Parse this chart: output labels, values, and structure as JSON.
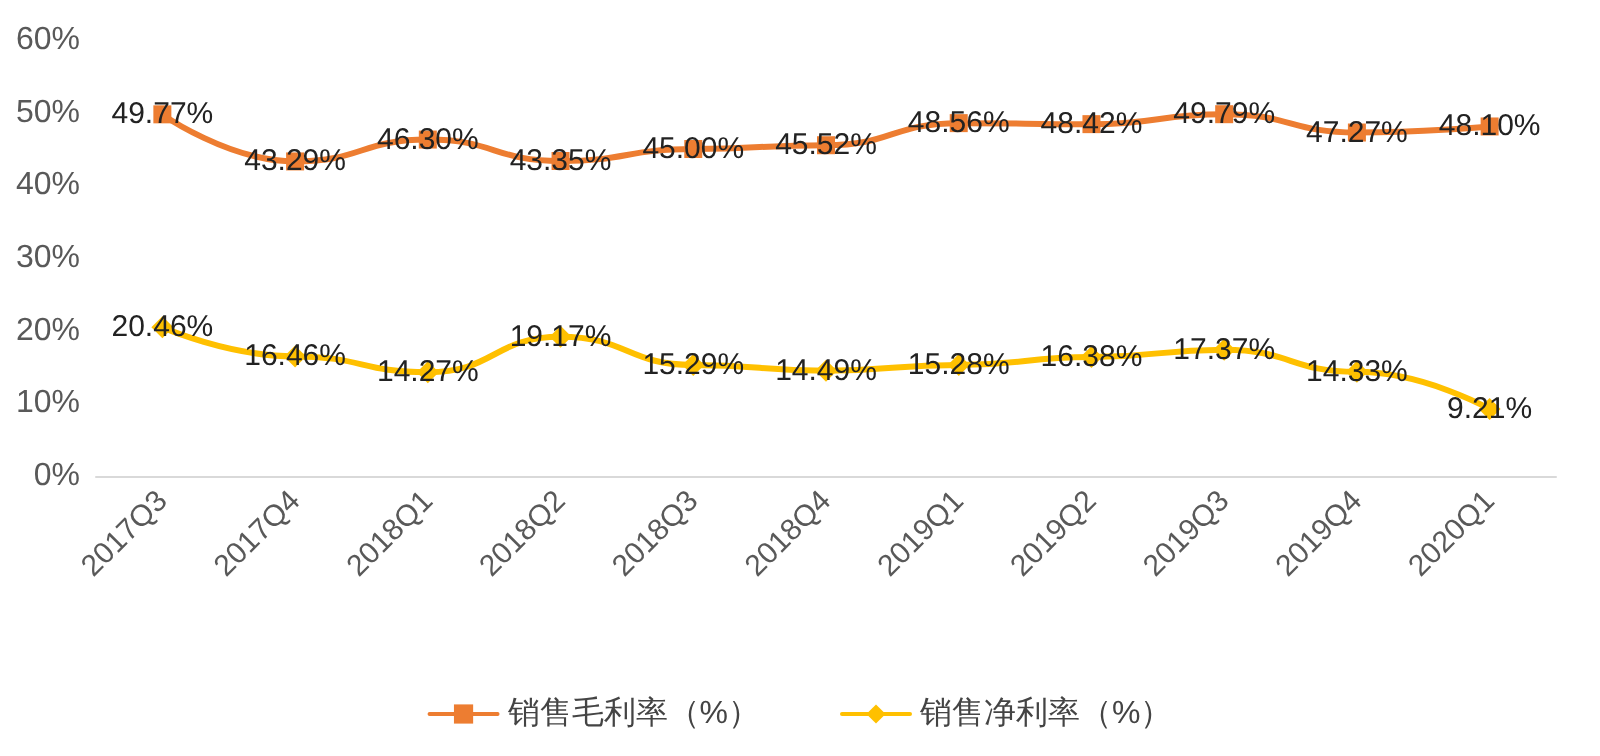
{
  "chart_data": {
    "type": "line",
    "categories": [
      "2017Q3",
      "2017Q4",
      "2018Q1",
      "2018Q2",
      "2018Q3",
      "2018Q4",
      "2019Q1",
      "2019Q2",
      "2019Q3",
      "2019Q4",
      "2020Q1"
    ],
    "series": [
      {
        "name": "销售毛利率（%）",
        "color": "#ed7d31",
        "marker": "square",
        "values": [
          49.77,
          43.29,
          46.3,
          43.35,
          45.0,
          45.52,
          48.56,
          48.42,
          49.79,
          47.27,
          48.1
        ],
        "value_labels": [
          "49.77%",
          "43.29%",
          "46.30%",
          "43.35%",
          "45.00%",
          "45.52%",
          "48.56%",
          "48.42%",
          "49.79%",
          "47.27%",
          "48.10%"
        ]
      },
      {
        "name": "销售净利率（%）",
        "color": "#ffc000",
        "marker": "diamond",
        "values": [
          20.46,
          16.46,
          14.27,
          19.17,
          15.29,
          14.49,
          15.28,
          16.38,
          17.37,
          14.33,
          9.21
        ],
        "value_labels": [
          "20.46%",
          "16.46%",
          "14.27%",
          "19.17%",
          "15.29%",
          "14.49%",
          "15.28%",
          "16.38%",
          "17.37%",
          "14.33%",
          "9.21%"
        ]
      }
    ],
    "ylim": [
      0,
      60
    ],
    "yticks": [
      {
        "value": 0,
        "label": "0%"
      },
      {
        "value": 10,
        "label": "10%"
      },
      {
        "value": 20,
        "label": "20%"
      },
      {
        "value": 30,
        "label": "30%"
      },
      {
        "value": 40,
        "label": "40%"
      },
      {
        "value": 50,
        "label": "50%"
      },
      {
        "value": 60,
        "label": "60%"
      }
    ],
    "legend": "bottom",
    "grid": false
  }
}
